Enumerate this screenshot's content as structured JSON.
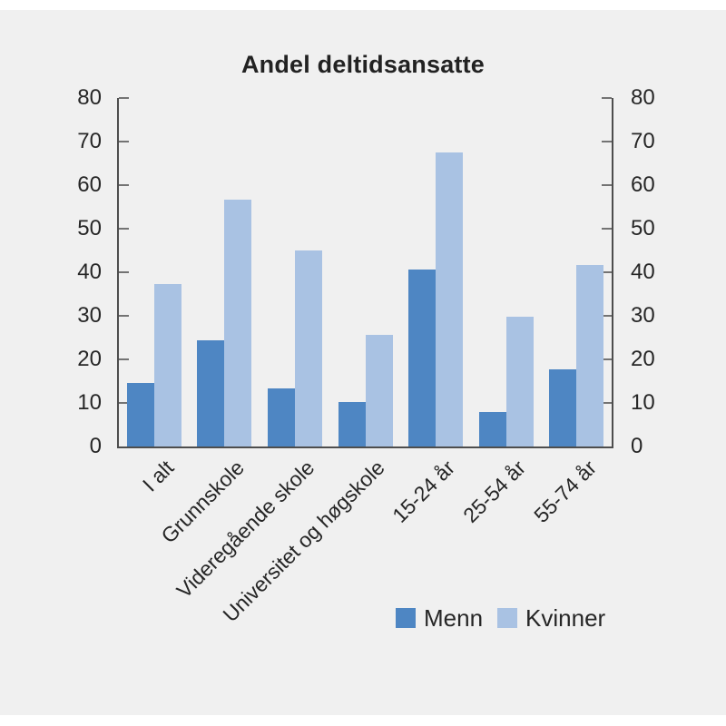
{
  "title": "Andel deltidsansatte",
  "colors": {
    "panel_background": "#f0f0f0",
    "page_background": "#ffffff",
    "axis_line": "#4d4d4d",
    "tick_mark": "#737373",
    "text": "#262626",
    "menn": "#4e86c3",
    "kvinner": "#a9c2e3"
  },
  "chart_data": {
    "type": "bar",
    "title": "Andel deltidsansatte",
    "categories": [
      "I alt",
      "Grunnskole",
      "Videregående skole",
      "Universitet og høgskole",
      "15-24 år",
      "25-54 år",
      "55-74 år"
    ],
    "series": [
      {
        "name": "Menn",
        "color": "#4e86c3",
        "values": [
          14.5,
          24.3,
          13.3,
          10.3,
          40.6,
          8.0,
          17.8
        ]
      },
      {
        "name": "Kvinner",
        "color": "#a9c2e3",
        "values": [
          37.3,
          56.7,
          45.0,
          25.6,
          67.6,
          29.7,
          41.6
        ]
      }
    ],
    "xlabel": "",
    "ylabel": "",
    "ylim": [
      0,
      80
    ],
    "yticks": [
      0,
      10,
      20,
      30,
      40,
      50,
      60,
      70,
      80
    ],
    "y_axis_sides": [
      "left",
      "right"
    ],
    "x_tick_rotation_deg": 45,
    "grid": false,
    "legend_position": "bottom-right"
  },
  "legend": {
    "menn_label": "Menn",
    "kvinner_label": "Kvinner"
  }
}
